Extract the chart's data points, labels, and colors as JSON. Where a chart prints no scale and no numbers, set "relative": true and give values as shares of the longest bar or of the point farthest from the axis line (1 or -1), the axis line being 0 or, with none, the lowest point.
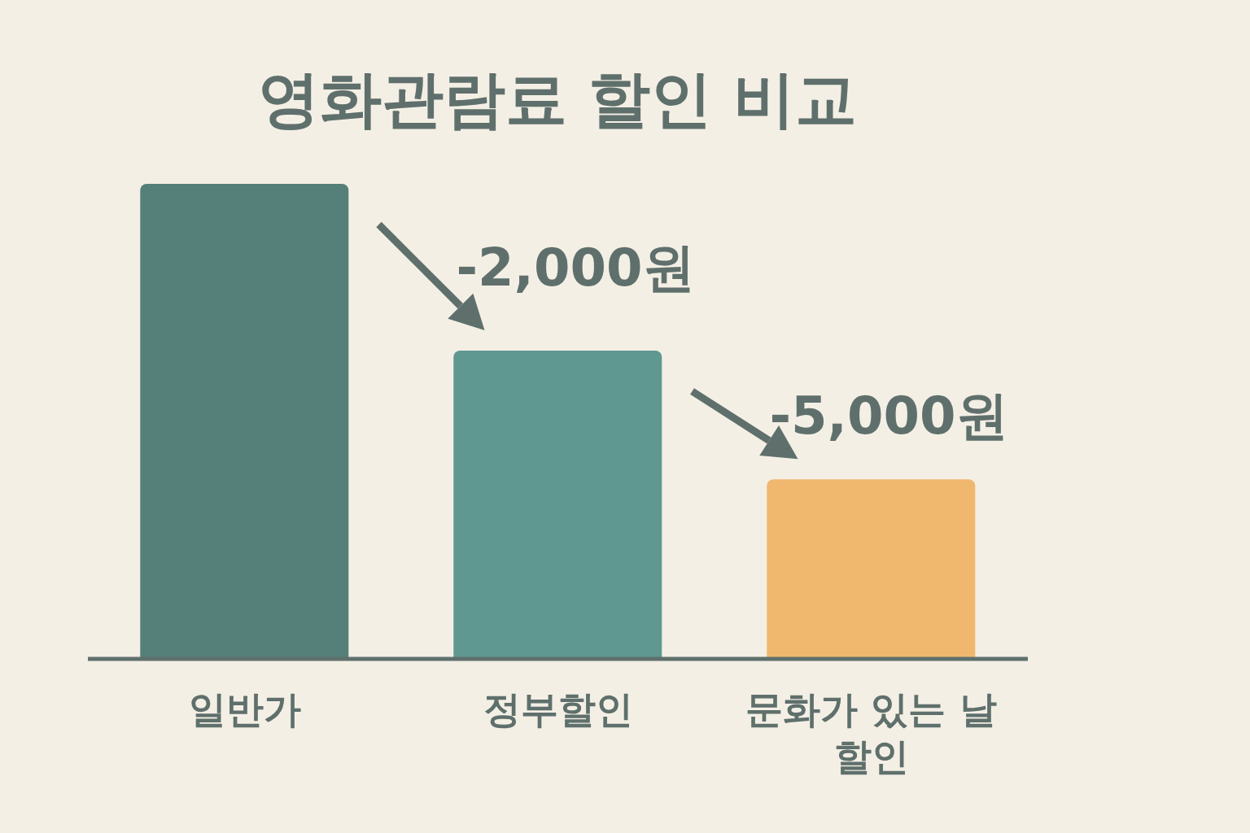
{
  "chart_data": {
    "type": "bar",
    "title": "영화관람료 할인 비교",
    "categories": [
      "일반가",
      "정부할인",
      "문화가 있는 날 할인"
    ],
    "values": [
      1,
      0.649,
      0.378
    ],
    "colors": [
      "#557f79",
      "#5f9891",
      "#f0b86e"
    ],
    "relative": true,
    "annotations": [
      "-2,000원",
      "-5,000원"
    ]
  }
}
